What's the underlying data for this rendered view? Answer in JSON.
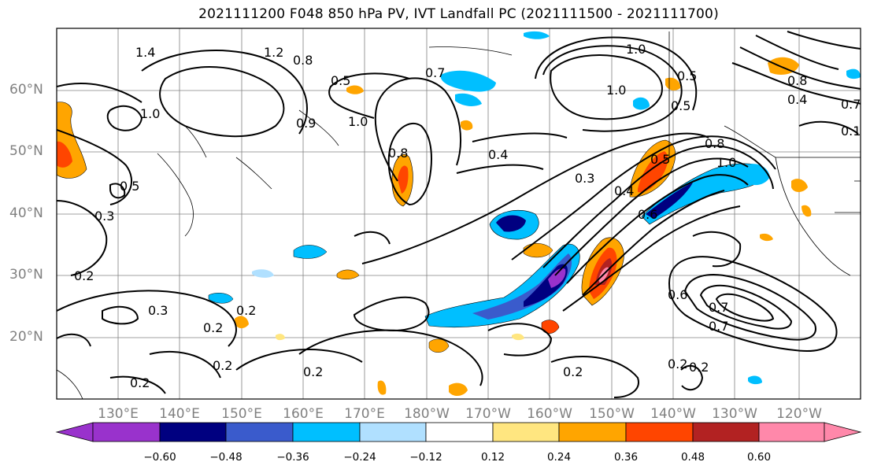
{
  "title": "2021111200 F048 850 hPa PV, IVT Landfall PC (2021111500 - 2021111700)",
  "map": {
    "lat_labels": [
      "60°N",
      "50°N",
      "40°N",
      "30°N",
      "20°N"
    ],
    "lon_labels": [
      "130°E",
      "140°E",
      "150°E",
      "160°E",
      "170°E",
      "180°W",
      "170°W",
      "160°W",
      "150°W",
      "140°W",
      "130°W",
      "120°W"
    ],
    "contour_labels": [
      "1.4",
      "1.2",
      "0.8",
      "1.0",
      "0.5",
      "0.7",
      "1.0",
      "0.9",
      "1.0",
      "0.8",
      "0.4",
      "0.5",
      "1.0",
      "0.3",
      "0.4",
      "0.6",
      "0.5",
      "0.8",
      "1.0",
      "0.8",
      "0.4",
      "0.7",
      "0.1",
      "0.5",
      "0.3",
      "0.2",
      "0.3",
      "0.2",
      "0.2",
      "0.2",
      "0.2",
      "0.2",
      "0.6",
      "0.2",
      "0.2",
      "0.7",
      "0.5",
      "0.2",
      "0.7"
    ],
    "gridlines": true
  },
  "colorbar": {
    "tick_labels": [
      "−0.60",
      "−0.48",
      "−0.36",
      "−0.24",
      "−0.12",
      "0.12",
      "0.24",
      "0.36",
      "0.48",
      "0.60"
    ],
    "bin_colors": [
      "#9932cc",
      "#000080",
      "#3a5bcc",
      "#00bfff",
      "#b0e0ff",
      "#ffffff",
      "#ffe680",
      "#ffa500",
      "#ff4500",
      "#b22222",
      "#ff88aa"
    ],
    "extend": "both"
  }
}
